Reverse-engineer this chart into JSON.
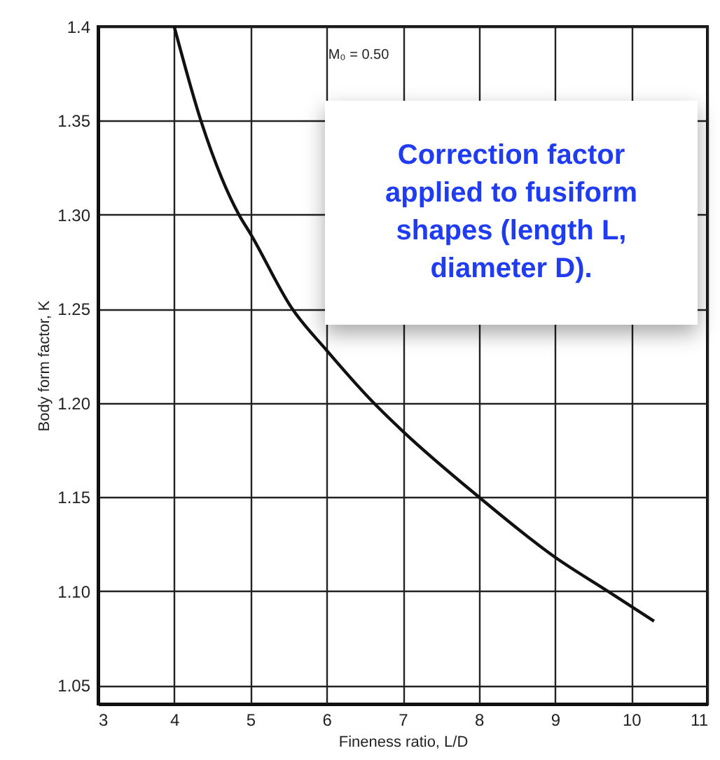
{
  "chart_data": {
    "type": "line",
    "xlabel": "Fineness ratio, L/D",
    "ylabel": "Body form factor, K",
    "x": [
      4,
      4.35,
      4.85,
      5,
      5.55,
      6,
      6.62,
      7,
      8,
      9,
      9.69,
      10.3
    ],
    "series": [
      {
        "color": "#111111",
        "values": [
          1.4,
          1.35,
          1.3,
          1.29,
          1.25,
          1.228,
          1.2,
          1.185,
          1.15,
          1.118,
          1.1,
          1.084
        ]
      }
    ],
    "xlim": [
      3,
      11
    ],
    "xticks": [
      3,
      4,
      5,
      6,
      7,
      8,
      9,
      10,
      11
    ],
    "ylim": [
      1.04,
      1.4
    ],
    "yticks": [
      1.05,
      {
        "value": 1.1,
        "label": "1.10"
      },
      1.15,
      {
        "value": 1.2,
        "label": "1.20"
      },
      1.25,
      {
        "value": 1.3,
        "label": "1.30"
      },
      1.35,
      {
        "value": 1.4,
        "label": "1.4"
      }
    ],
    "grid": true,
    "annotations": [
      "M₀ = 0.50",
      "Correction factor applied to fusiform shapes (length L, diameter D)."
    ]
  }
}
